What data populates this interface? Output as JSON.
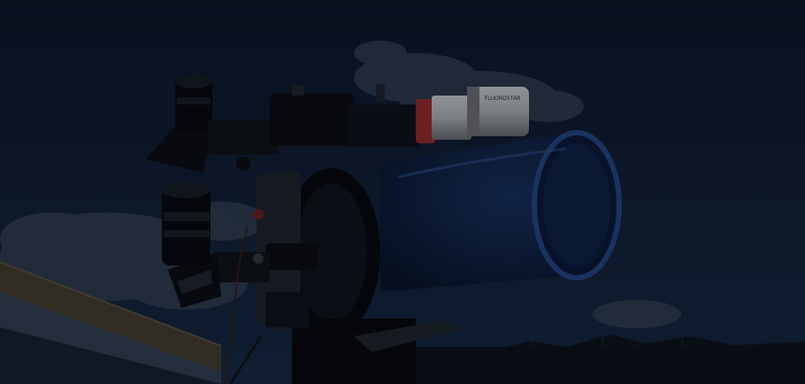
{
  "photo": {
    "finder_scope_label": "FLUOROSTAR",
    "colors": {
      "sky_top": "#0b1424",
      "sky_bottom": "#13223a",
      "cloud": "#3a4454",
      "tube": "#0c1a36",
      "tube_rim": "#1e3a6e",
      "finder_body": "#8d9096",
      "finder_ring": "#7a2626",
      "mount": "#07090e",
      "roof_wood": "#3a342a",
      "roof_frame": "#2a3444"
    }
  }
}
